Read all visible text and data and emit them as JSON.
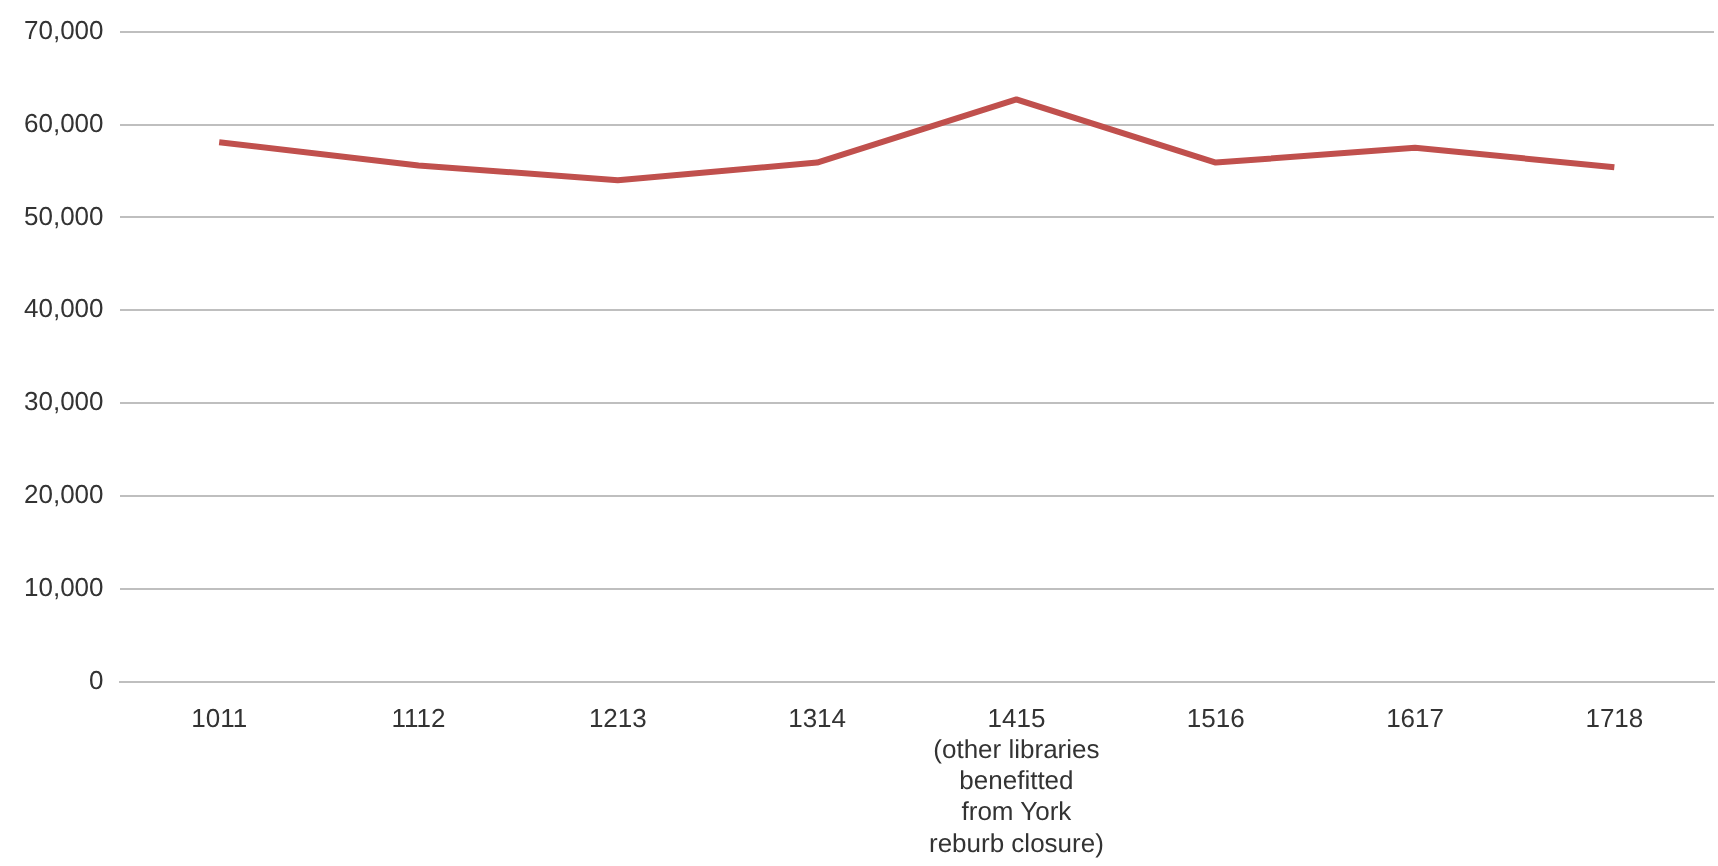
{
  "chart_data": {
    "type": "line",
    "categories": [
      "1011",
      "1112",
      "1213",
      "1314",
      "1415\n(other libraries\nbenefitted\nfrom York\nreburb closure)",
      "1516",
      "1617",
      "1718"
    ],
    "series": [
      {
        "color": "#c0504d",
        "values": [
          58100,
          55600,
          54000,
          55900,
          62700,
          55900,
          57500,
          55400
        ]
      }
    ],
    "ylim": [
      0,
      70000
    ],
    "yticks": [
      {
        "value": 0,
        "label": "0"
      },
      {
        "value": 10000,
        "label": "10,000"
      },
      {
        "value": 20000,
        "label": "20,000"
      },
      {
        "value": 30000,
        "label": "30,000"
      },
      {
        "value": 40000,
        "label": "40,000"
      },
      {
        "value": 50000,
        "label": "50,000"
      },
      {
        "value": 60000,
        "label": "60,000"
      },
      {
        "value": 70000,
        "label": "70,000"
      }
    ],
    "grid": "y",
    "legend": false,
    "marker": "none",
    "line_style": "solid"
  }
}
